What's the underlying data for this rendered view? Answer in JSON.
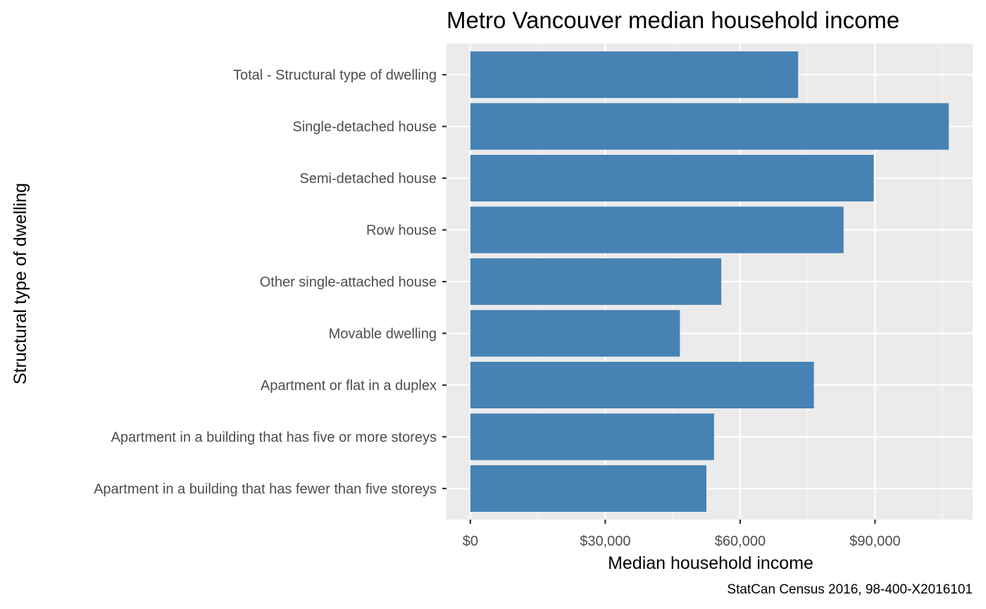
{
  "chart_data": {
    "type": "bar",
    "orientation": "horizontal",
    "title": "Metro Vancouver median household income",
    "xlabel": "Median household income",
    "ylabel": "Structural type of dwelling",
    "caption": "StatCan Census 2016, 98-400-X2016101",
    "categories": [
      "Total - Structural type of dwelling",
      "Single-detached house",
      "Semi-detached house",
      "Row house",
      "Other single-attached house",
      "Movable dwelling",
      "Apartment or flat in a duplex",
      "Apartment in a building that has five or more storeys",
      "Apartment in a building that has fewer than five storeys"
    ],
    "values": [
      72900,
      106400,
      89700,
      83000,
      55800,
      46600,
      76400,
      54200,
      52500
    ],
    "xlim": [
      -5300,
      111700
    ],
    "xticks": [
      0,
      30000,
      60000,
      90000
    ],
    "xtick_labels": [
      "$0",
      "$30,000",
      "$60,000",
      "$90,000"
    ],
    "grid": true,
    "legend": "none",
    "colors": {
      "bar": "#4682b4",
      "panel": "#ebebeb",
      "grid_major": "#ffffff",
      "grid_minor": "#f5f5f5"
    }
  }
}
